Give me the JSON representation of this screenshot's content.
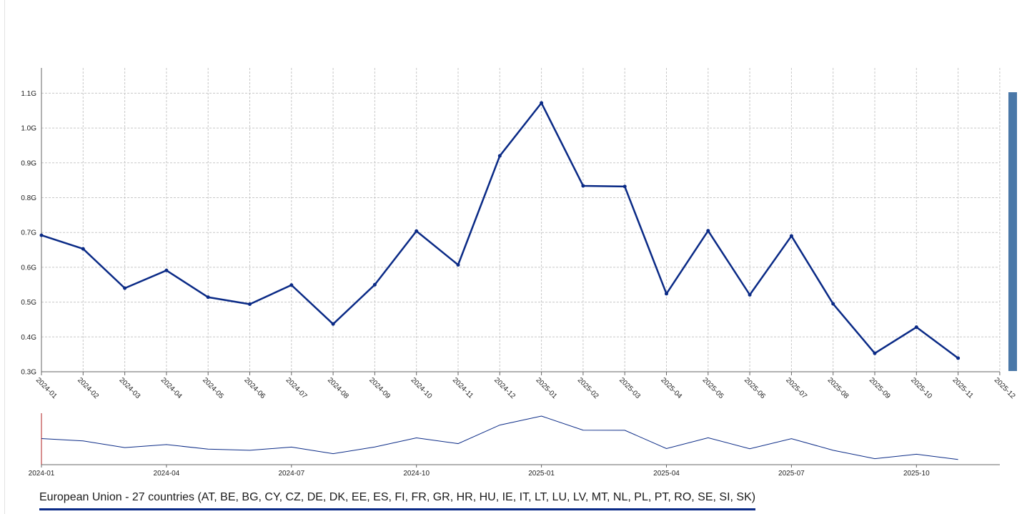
{
  "chart_data": {
    "type": "line",
    "x": [
      "2024-01",
      "2024-02",
      "2024-03",
      "2024-04",
      "2024-05",
      "2024-06",
      "2024-07",
      "2024-08",
      "2024-09",
      "2024-10",
      "2024-11",
      "2024-12",
      "2025-01",
      "2025-02",
      "2025-03",
      "2025-04",
      "2025-05",
      "2025-06",
      "2025-07",
      "2025-08",
      "2025-09",
      "2025-10",
      "2025-11"
    ],
    "x_ticks": [
      "2024-01",
      "2024-02",
      "2024-03",
      "2024-04",
      "2024-05",
      "2024-06",
      "2024-07",
      "2024-08",
      "2024-09",
      "2024-10",
      "2024-11",
      "2024-12",
      "2025-01",
      "2025-02",
      "2025-03",
      "2025-04",
      "2025-05",
      "2025-06",
      "2025-07",
      "2025-08",
      "2025-09",
      "2025-10",
      "2025-11",
      "2025-12"
    ],
    "series": [
      {
        "name": "European Union - 27 countries (AT, BE, BG, CY, CZ, DE, DK, EE, ES, FI, FR, GR, HR, HU, IE, IT, LT, LU, LV, MT, NL, PL, PT, RO, SE, SI, SK)",
        "values": [
          0.692,
          0.653,
          0.54,
          0.591,
          0.514,
          0.494,
          0.549,
          0.437,
          0.55,
          0.704,
          0.607,
          0.92,
          1.072,
          0.834,
          0.832,
          0.524,
          0.705,
          0.521,
          0.69,
          0.495,
          0.353,
          0.428,
          0.339
        ]
      }
    ],
    "y_ticks": [
      "0.3G",
      "0.4G",
      "0.5G",
      "0.6G",
      "0.7G",
      "0.8G",
      "0.9G",
      "1.0G",
      "1.1G"
    ],
    "ylim": [
      0.3,
      1.175
    ],
    "y_unit": "G",
    "grid": true,
    "legend_position": "bottom-left",
    "color": "#0a2a86",
    "navigator": {
      "x_ticks": [
        "2024-01",
        "2024-04",
        "2024-07",
        "2024-10",
        "2025-01",
        "2025-04",
        "2025-07",
        "2025-10"
      ]
    }
  }
}
